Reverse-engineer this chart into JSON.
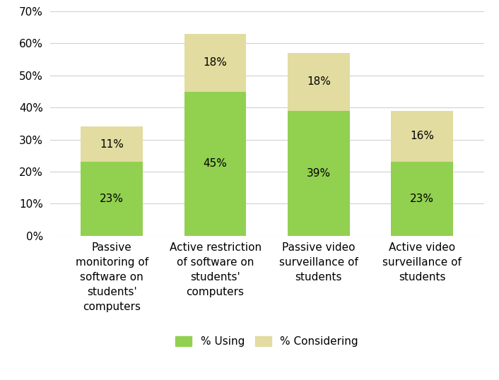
{
  "categories": [
    "Passive\nmonitoring of\nsoftware on\nstudents'\ncomputers",
    "Active restriction\nof software on\nstudents'\ncomputers",
    "Passive video\nsurveillance of\nstudents",
    "Active video\nsurveillance of\nstudents"
  ],
  "using_values": [
    23,
    45,
    39,
    23
  ],
  "considering_values": [
    11,
    18,
    18,
    16
  ],
  "using_color": "#92d050",
  "considering_color": "#e2dca0",
  "using_label": "% Using",
  "considering_label": "% Considering",
  "ylim": [
    0,
    70
  ],
  "yticks": [
    0,
    10,
    20,
    30,
    40,
    50,
    60,
    70
  ],
  "ytick_labels": [
    "0%",
    "10%",
    "20%",
    "30%",
    "40%",
    "50%",
    "60%",
    "70%"
  ],
  "bar_width": 0.6,
  "label_fontsize": 11,
  "tick_fontsize": 11,
  "legend_fontsize": 11,
  "background_color": "#ffffff",
  "grid_color": "#d0d0d0",
  "figsize": [
    7.06,
    5.38
  ],
  "dpi": 100
}
